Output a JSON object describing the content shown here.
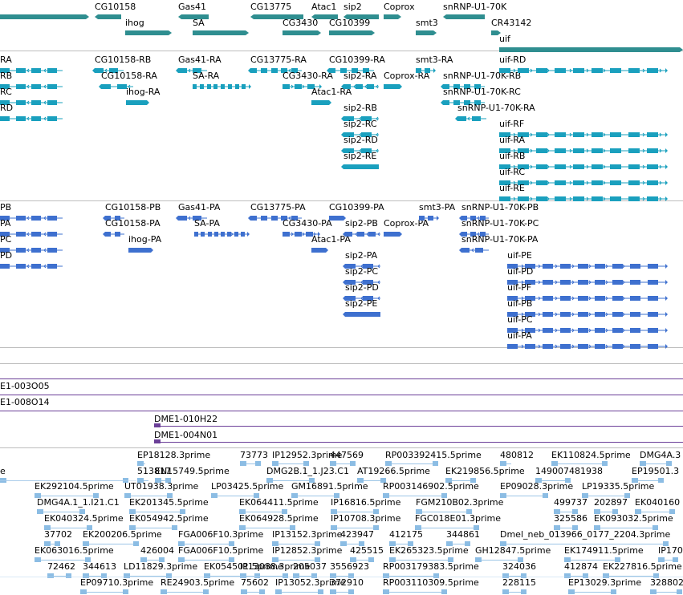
{
  "colors": {
    "gene": "#2f8e90",
    "transcript1": "#1aa0be",
    "transcript2": "#3e70cf",
    "est": "#8cbde4",
    "clone": "#6b3f98",
    "divider": "#bdbdbd"
  },
  "genes": [
    {
      "label": "CG10158"
    },
    {
      "label": "ihog"
    },
    {
      "label": "Gas41"
    },
    {
      "label": "SA"
    },
    {
      "label": "CG13775"
    },
    {
      "label": "CG3430"
    },
    {
      "label": "Atac1"
    },
    {
      "label": "sip2"
    },
    {
      "label": "CG10399"
    },
    {
      "label": "Coprox"
    },
    {
      "label": "smt3"
    },
    {
      "label": "snRNP-U1-70K"
    },
    {
      "label": "CR43142"
    },
    {
      "label": "uif"
    }
  ],
  "transcripts_a": [
    {
      "label": "RA"
    },
    {
      "label": "RB"
    },
    {
      "label": "RC"
    },
    {
      "label": "RD"
    },
    {
      "label": "CG10158-RB"
    },
    {
      "label": "CG10158-RA"
    },
    {
      "label": "ihog-RA"
    },
    {
      "label": "Gas41-RA"
    },
    {
      "label": "SA-RA"
    },
    {
      "label": "CG13775-RA"
    },
    {
      "label": "CG3430-RA"
    },
    {
      "label": "Atac1-RA"
    },
    {
      "label": "CG10399-RA"
    },
    {
      "label": "sip2-RA"
    },
    {
      "label": "sip2-RB"
    },
    {
      "label": "sip2-RC"
    },
    {
      "label": "sip2-RD"
    },
    {
      "label": "sip2-RE"
    },
    {
      "label": "Coprox-RA"
    },
    {
      "label": "smt3-RA"
    },
    {
      "label": "snRNP-U1-70K-RB"
    },
    {
      "label": "snRNP-U1-70K-RC"
    },
    {
      "label": "snRNP-U1-70K-RA"
    },
    {
      "label": "uif-RD"
    },
    {
      "label": "uif-RF"
    },
    {
      "label": "uif-RA"
    },
    {
      "label": "uif-RB"
    },
    {
      "label": "uif-RC"
    },
    {
      "label": "uif-RE"
    }
  ],
  "transcripts_b": [
    {
      "label": "PB"
    },
    {
      "label": "PA"
    },
    {
      "label": "PC"
    },
    {
      "label": "PD"
    },
    {
      "label": "CG10158-PB"
    },
    {
      "label": "CG10158-PA"
    },
    {
      "label": "ihog-PA"
    },
    {
      "label": "Gas41-PA"
    },
    {
      "label": "SA-PA"
    },
    {
      "label": "CG13775-PA"
    },
    {
      "label": "CG3430-PA"
    },
    {
      "label": "Atac1-PA"
    },
    {
      "label": "CG10399-PA"
    },
    {
      "label": "sip2-PB"
    },
    {
      "label": "sip2-PA"
    },
    {
      "label": "sip2-PC"
    },
    {
      "label": "sip2-PD"
    },
    {
      "label": "sip2-PE"
    },
    {
      "label": "Coprox-PA"
    },
    {
      "label": "smt3-PA"
    },
    {
      "label": "snRNP-U1-70K-PB"
    },
    {
      "label": "snRNP-U1-70K-PC"
    },
    {
      "label": "snRNP-U1-70K-PA"
    },
    {
      "label": "uif-PE"
    },
    {
      "label": "uif-PD"
    },
    {
      "label": "uif-PF"
    },
    {
      "label": "uif-PB"
    },
    {
      "label": "uif-PC"
    },
    {
      "label": "uif-PA"
    }
  ],
  "clones": [
    {
      "label": "E1-003O05"
    },
    {
      "label": "E1-008O14"
    },
    {
      "label": "DME1-010H22"
    },
    {
      "label": "DME1-004N01"
    }
  ],
  "ests": [
    {
      "label": "e"
    },
    {
      "label": "EP18128.3prime"
    },
    {
      "label": "513817"
    },
    {
      "label": "EN15749.5prime"
    },
    {
      "label": "73773"
    },
    {
      "label": "IP12952.3prime"
    },
    {
      "label": "DMG2B.1_1.J23.C1"
    },
    {
      "label": "447569"
    },
    {
      "label": "AT19266.5prime"
    },
    {
      "label": "RP003392415.5prime"
    },
    {
      "label": "EK219856.5prime"
    },
    {
      "label": "480812"
    },
    {
      "label": "EK110824.5prime"
    },
    {
      "label": "149007481938"
    },
    {
      "label": "DMG4A.3"
    },
    {
      "label": "EP19501.3"
    },
    {
      "label": "EK292104.5prime"
    },
    {
      "label": "UT01938.3prime"
    },
    {
      "label": "LP03425.5prime"
    },
    {
      "label": "GM16891.5prime"
    },
    {
      "label": "RP003146902.5prime"
    },
    {
      "label": "EP09028.3prime"
    },
    {
      "label": "LP19335.5prime"
    },
    {
      "label": "DMG4A.1_1.I21.C1"
    },
    {
      "label": "EK201345.5prime"
    },
    {
      "label": "EK064411.5prime"
    },
    {
      "label": "IP16816.5prime"
    },
    {
      "label": "FGM210B02.3prime"
    },
    {
      "label": "499737"
    },
    {
      "label": "202897"
    },
    {
      "label": "EK040160"
    },
    {
      "label": "EK040324.5prime"
    },
    {
      "label": "EK054942.5prime"
    },
    {
      "label": "EK064928.5prime"
    },
    {
      "label": "IP10708.3prime"
    },
    {
      "label": "FGC018E01.3prime"
    },
    {
      "label": "325586"
    },
    {
      "label": "EK093032.5prime"
    },
    {
      "label": "37702"
    },
    {
      "label": "EK200206.5prime"
    },
    {
      "label": "FGA006F10.3prime"
    },
    {
      "label": "IP13152.3prime"
    },
    {
      "label": "423947"
    },
    {
      "label": "412175"
    },
    {
      "label": "344861"
    },
    {
      "label": "Dmel_neb_013966_0177_2204.3prime"
    },
    {
      "label": "EK063016.5prime"
    },
    {
      "label": "426004"
    },
    {
      "label": "FGA006F10.5prime"
    },
    {
      "label": "IP12852.3prime"
    },
    {
      "label": "425515"
    },
    {
      "label": "EK265323.5prime"
    },
    {
      "label": "GH12847.5prime"
    },
    {
      "label": "EK174911.5prime"
    },
    {
      "label": "IP170"
    },
    {
      "label": "72462"
    },
    {
      "label": "344613"
    },
    {
      "label": "LD11829.3prime"
    },
    {
      "label": "EK054501.5prime"
    },
    {
      "label": "IP13088.3prime"
    },
    {
      "label": "205037"
    },
    {
      "label": "3556923"
    },
    {
      "label": "RP003179383.5prime"
    },
    {
      "label": "324036"
    },
    {
      "label": "412874"
    },
    {
      "label": "EK227816.5prime"
    },
    {
      "label": "EP09710.3prime"
    },
    {
      "label": "RE24903.5prime"
    },
    {
      "label": "75602"
    },
    {
      "label": "IP13052.3prime"
    },
    {
      "label": "372910"
    },
    {
      "label": "RP003110309.5prime"
    },
    {
      "label": "228115"
    },
    {
      "label": "EP13029.3prime"
    },
    {
      "label": "328802"
    }
  ]
}
